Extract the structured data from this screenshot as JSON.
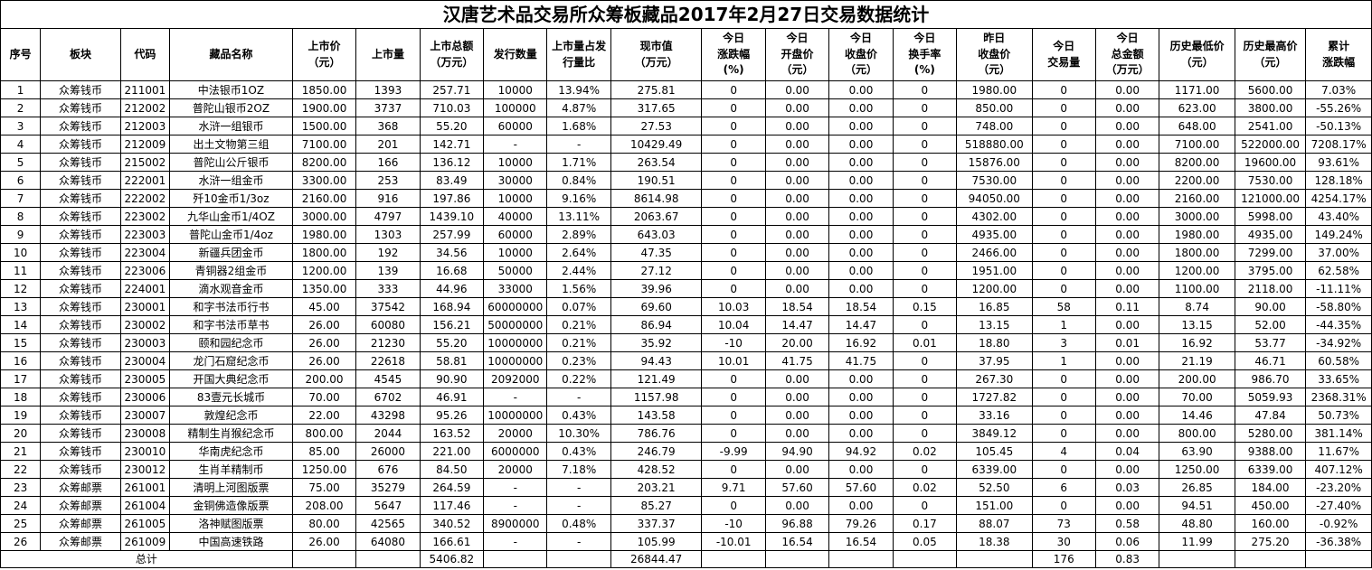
{
  "title": "汉唐艺术品交易所众筹板藏品2017年2月27日交易数据统计",
  "headers": [
    [
      "序号"
    ],
    [
      "板块"
    ],
    [
      "代码"
    ],
    [
      "藏品名称"
    ],
    [
      "上市价",
      "（元）"
    ],
    [
      "上市量"
    ],
    [
      "上市总额",
      "（万元）"
    ],
    [
      "发行数量"
    ],
    [
      "上市量占发",
      "行量比"
    ],
    [
      "现市值",
      "（万元）"
    ],
    [
      "今日",
      "涨跌幅",
      "(%)"
    ],
    [
      "今日",
      "开盘价",
      "（元）"
    ],
    [
      "今日",
      "收盘价",
      "（元）"
    ],
    [
      "今日",
      "换手率",
      "(%)"
    ],
    [
      "昨日",
      "收盘价",
      "（元）"
    ],
    [
      "今日",
      "交易量"
    ],
    [
      "今日",
      "总金额",
      "（万元）"
    ],
    [
      "历史最低价",
      "（元）"
    ],
    [
      "历史最高价",
      "（元）"
    ],
    [
      "累计",
      "涨跌幅"
    ]
  ],
  "rows": [
    [
      "1",
      "众筹钱币",
      "211001",
      "中法银币1OZ",
      "1850.00",
      "1393",
      "257.71",
      "10000",
      "13.94%",
      "275.81",
      "0",
      "0.00",
      "0.00",
      "0",
      "1980.00",
      "0",
      "0.00",
      "1171.00",
      "5600.00",
      "7.03%"
    ],
    [
      "2",
      "众筹钱币",
      "212002",
      "普陀山银币2OZ",
      "1900.00",
      "3737",
      "710.03",
      "100000",
      "4.87%",
      "317.65",
      "0",
      "0.00",
      "0.00",
      "0",
      "850.00",
      "0",
      "0.00",
      "623.00",
      "3800.00",
      "-55.26%"
    ],
    [
      "3",
      "众筹钱币",
      "212003",
      "水浒一组银币",
      "1500.00",
      "368",
      "55.20",
      "60000",
      "1.68%",
      "27.53",
      "0",
      "0.00",
      "0.00",
      "0",
      "748.00",
      "0",
      "0.00",
      "648.00",
      "2541.00",
      "-50.13%"
    ],
    [
      "4",
      "众筹钱币",
      "212009",
      "出土文物第三组",
      "7100.00",
      "201",
      "142.71",
      "-",
      "-",
      "10429.49",
      "0",
      "0.00",
      "0.00",
      "0",
      "518880.00",
      "0",
      "0.00",
      "7100.00",
      "522000.00",
      "7208.17%"
    ],
    [
      "5",
      "众筹钱币",
      "215002",
      "普陀山公斤银币",
      "8200.00",
      "166",
      "136.12",
      "10000",
      "1.71%",
      "263.54",
      "0",
      "0.00",
      "0.00",
      "0",
      "15876.00",
      "0",
      "0.00",
      "8200.00",
      "19600.00",
      "93.61%"
    ],
    [
      "6",
      "众筹钱币",
      "222001",
      "水浒一组金币",
      "3300.00",
      "253",
      "83.49",
      "30000",
      "0.84%",
      "190.51",
      "0",
      "0.00",
      "0.00",
      "0",
      "7530.00",
      "0",
      "0.00",
      "2200.00",
      "7530.00",
      "128.18%"
    ],
    [
      "7",
      "众筹钱币",
      "222002",
      "歼10金币1/3oz",
      "2160.00",
      "916",
      "197.86",
      "10000",
      "9.16%",
      "8614.98",
      "0",
      "0.00",
      "0.00",
      "0",
      "94050.00",
      "0",
      "0.00",
      "2160.00",
      "121000.00",
      "4254.17%"
    ],
    [
      "8",
      "众筹钱币",
      "223002",
      "九华山金币1/4OZ",
      "3000.00",
      "4797",
      "1439.10",
      "40000",
      "13.11%",
      "2063.67",
      "0",
      "0.00",
      "0.00",
      "0",
      "4302.00",
      "0",
      "0.00",
      "3000.00",
      "5998.00",
      "43.40%"
    ],
    [
      "9",
      "众筹钱币",
      "223003",
      "普陀山金币1/4oz",
      "1980.00",
      "1303",
      "257.99",
      "60000",
      "2.89%",
      "643.03",
      "0",
      "0.00",
      "0.00",
      "0",
      "4935.00",
      "0",
      "0.00",
      "1980.00",
      "4935.00",
      "149.24%"
    ],
    [
      "10",
      "众筹钱币",
      "223004",
      "新疆兵团金币",
      "1800.00",
      "192",
      "34.56",
      "10000",
      "2.64%",
      "47.35",
      "0",
      "0.00",
      "0.00",
      "0",
      "2466.00",
      "0",
      "0.00",
      "1800.00",
      "7299.00",
      "37.00%"
    ],
    [
      "11",
      "众筹钱币",
      "223006",
      "青铜器2组金币",
      "1200.00",
      "139",
      "16.68",
      "50000",
      "2.44%",
      "27.12",
      "0",
      "0.00",
      "0.00",
      "0",
      "1951.00",
      "0",
      "0.00",
      "1200.00",
      "3795.00",
      "62.58%"
    ],
    [
      "12",
      "众筹钱币",
      "224001",
      "滴水观音金币",
      "1350.00",
      "333",
      "44.96",
      "33000",
      "1.56%",
      "39.96",
      "0",
      "0.00",
      "0.00",
      "0",
      "1200.00",
      "0",
      "0.00",
      "1100.00",
      "2118.00",
      "-11.11%"
    ],
    [
      "13",
      "众筹钱币",
      "230001",
      "和字书法币行书",
      "45.00",
      "37542",
      "168.94",
      "60000000",
      "0.07%",
      "69.60",
      "10.03",
      "18.54",
      "18.54",
      "0.15",
      "16.85",
      "58",
      "0.11",
      "8.74",
      "90.00",
      "-58.80%"
    ],
    [
      "14",
      "众筹钱币",
      "230002",
      "和字书法币草书",
      "26.00",
      "60080",
      "156.21",
      "50000000",
      "0.21%",
      "86.94",
      "10.04",
      "14.47",
      "14.47",
      "0",
      "13.15",
      "1",
      "0.00",
      "13.15",
      "52.00",
      "-44.35%"
    ],
    [
      "15",
      "众筹钱币",
      "230003",
      "颐和园纪念币",
      "26.00",
      "21230",
      "55.20",
      "10000000",
      "0.21%",
      "35.92",
      "-10",
      "20.00",
      "16.92",
      "0.01",
      "18.80",
      "3",
      "0.01",
      "16.92",
      "53.77",
      "-34.92%"
    ],
    [
      "16",
      "众筹钱币",
      "230004",
      "龙门石窟纪念币",
      "26.00",
      "22618",
      "58.81",
      "10000000",
      "0.23%",
      "94.43",
      "10.01",
      "41.75",
      "41.75",
      "0",
      "37.95",
      "1",
      "0.00",
      "21.19",
      "46.71",
      "60.58%"
    ],
    [
      "17",
      "众筹钱币",
      "230005",
      "开国大典纪念币",
      "200.00",
      "4545",
      "90.90",
      "2092000",
      "0.22%",
      "121.49",
      "0",
      "0.00",
      "0.00",
      "0",
      "267.30",
      "0",
      "0.00",
      "200.00",
      "986.70",
      "33.65%"
    ],
    [
      "18",
      "众筹钱币",
      "230006",
      "83壹元长城币",
      "70.00",
      "6702",
      "46.91",
      "-",
      "-",
      "1157.98",
      "0",
      "0.00",
      "0.00",
      "0",
      "1727.82",
      "0",
      "0.00",
      "70.00",
      "5059.93",
      "2368.31%"
    ],
    [
      "19",
      "众筹钱币",
      "230007",
      "敦煌纪念币",
      "22.00",
      "43298",
      "95.26",
      "10000000",
      "0.43%",
      "143.58",
      "0",
      "0.00",
      "0.00",
      "0",
      "33.16",
      "0",
      "0.00",
      "14.46",
      "47.84",
      "50.73%"
    ],
    [
      "20",
      "众筹钱币",
      "230008",
      "精制生肖猴纪念币",
      "800.00",
      "2044",
      "163.52",
      "20000",
      "10.30%",
      "786.76",
      "0",
      "0.00",
      "0.00",
      "0",
      "3849.12",
      "0",
      "0.00",
      "800.00",
      "5280.00",
      "381.14%"
    ],
    [
      "21",
      "众筹钱币",
      "230010",
      "华南虎纪念币",
      "85.00",
      "26000",
      "221.00",
      "6000000",
      "0.43%",
      "246.79",
      "-9.99",
      "94.90",
      "94.92",
      "0.02",
      "105.45",
      "4",
      "0.04",
      "63.90",
      "9388.00",
      "11.67%"
    ],
    [
      "22",
      "众筹钱币",
      "230012",
      "生肖羊精制币",
      "1250.00",
      "676",
      "84.50",
      "20000",
      "7.18%",
      "428.52",
      "0",
      "0.00",
      "0.00",
      "0",
      "6339.00",
      "0",
      "0.00",
      "1250.00",
      "6339.00",
      "407.12%"
    ],
    [
      "23",
      "众筹邮票",
      "261001",
      "清明上河图版票",
      "75.00",
      "35279",
      "264.59",
      "-",
      "-",
      "203.21",
      "9.71",
      "57.60",
      "57.60",
      "0.02",
      "52.50",
      "6",
      "0.03",
      "26.85",
      "184.00",
      "-23.20%"
    ],
    [
      "24",
      "众筹邮票",
      "261004",
      "金铜佛造像版票",
      "208.00",
      "5647",
      "117.46",
      "-",
      "-",
      "85.27",
      "0",
      "0.00",
      "0.00",
      "0",
      "151.00",
      "0",
      "0.00",
      "94.51",
      "450.00",
      "-27.40%"
    ],
    [
      "25",
      "众筹邮票",
      "261005",
      "洛神赋图版票",
      "80.00",
      "42565",
      "340.52",
      "8900000",
      "0.48%",
      "337.37",
      "-10",
      "96.88",
      "79.26",
      "0.17",
      "88.07",
      "73",
      "0.58",
      "48.80",
      "160.00",
      "-0.92%"
    ],
    [
      "26",
      "众筹邮票",
      "261009",
      "中国高速铁路",
      "26.00",
      "64080",
      "166.61",
      "-",
      "-",
      "105.99",
      "-10.01",
      "16.54",
      "16.54",
      "0.05",
      "18.38",
      "30",
      "0.06",
      "11.99",
      "275.20",
      "-36.38%"
    ]
  ],
  "total": {
    "label": "总计",
    "listing_amount": "5406.82",
    "market_value": "26844.47",
    "volume": "176",
    "turnover_amount": "0.83"
  }
}
